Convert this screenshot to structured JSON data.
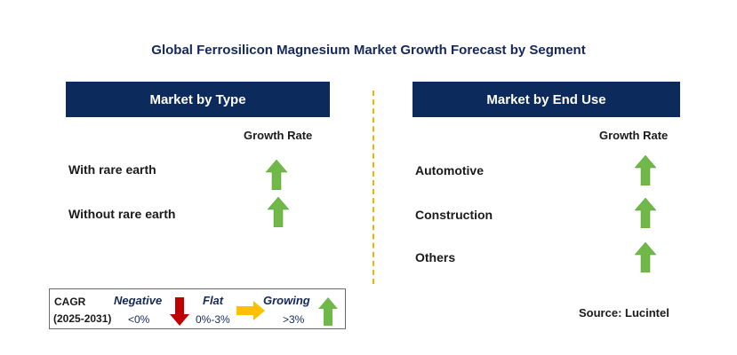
{
  "title": "Global Ferrosilicon Magnesium Market Growth Forecast by Segment",
  "left_panel": {
    "header": "Market by Type",
    "column_header": "Growth Rate",
    "rows": [
      {
        "label": "With rare earth",
        "trend": "growing"
      },
      {
        "label": "Without rare earth",
        "trend": "growing"
      }
    ]
  },
  "right_panel": {
    "header": "Market by End Use",
    "column_header": "Growth Rate",
    "rows": [
      {
        "label": "Automotive",
        "trend": "growing"
      },
      {
        "label": "Construction",
        "trend": "growing"
      },
      {
        "label": "Others",
        "trend": "growing"
      }
    ]
  },
  "legend": {
    "cagr_label": "CAGR",
    "period": "(2025-2031)",
    "negative_label": "Negative",
    "negative_value": "<0%",
    "flat_label": "Flat",
    "flat_value": "0%-3%",
    "growing_label": "Growing",
    "growing_value": ">3%"
  },
  "source": "Source: Lucintel",
  "colors": {
    "header_bg": "#0d2a5c",
    "arrow_green": "#70b847",
    "arrow_red": "#c00000",
    "arrow_yellow": "#ffc000",
    "divider": "#f2b200"
  }
}
